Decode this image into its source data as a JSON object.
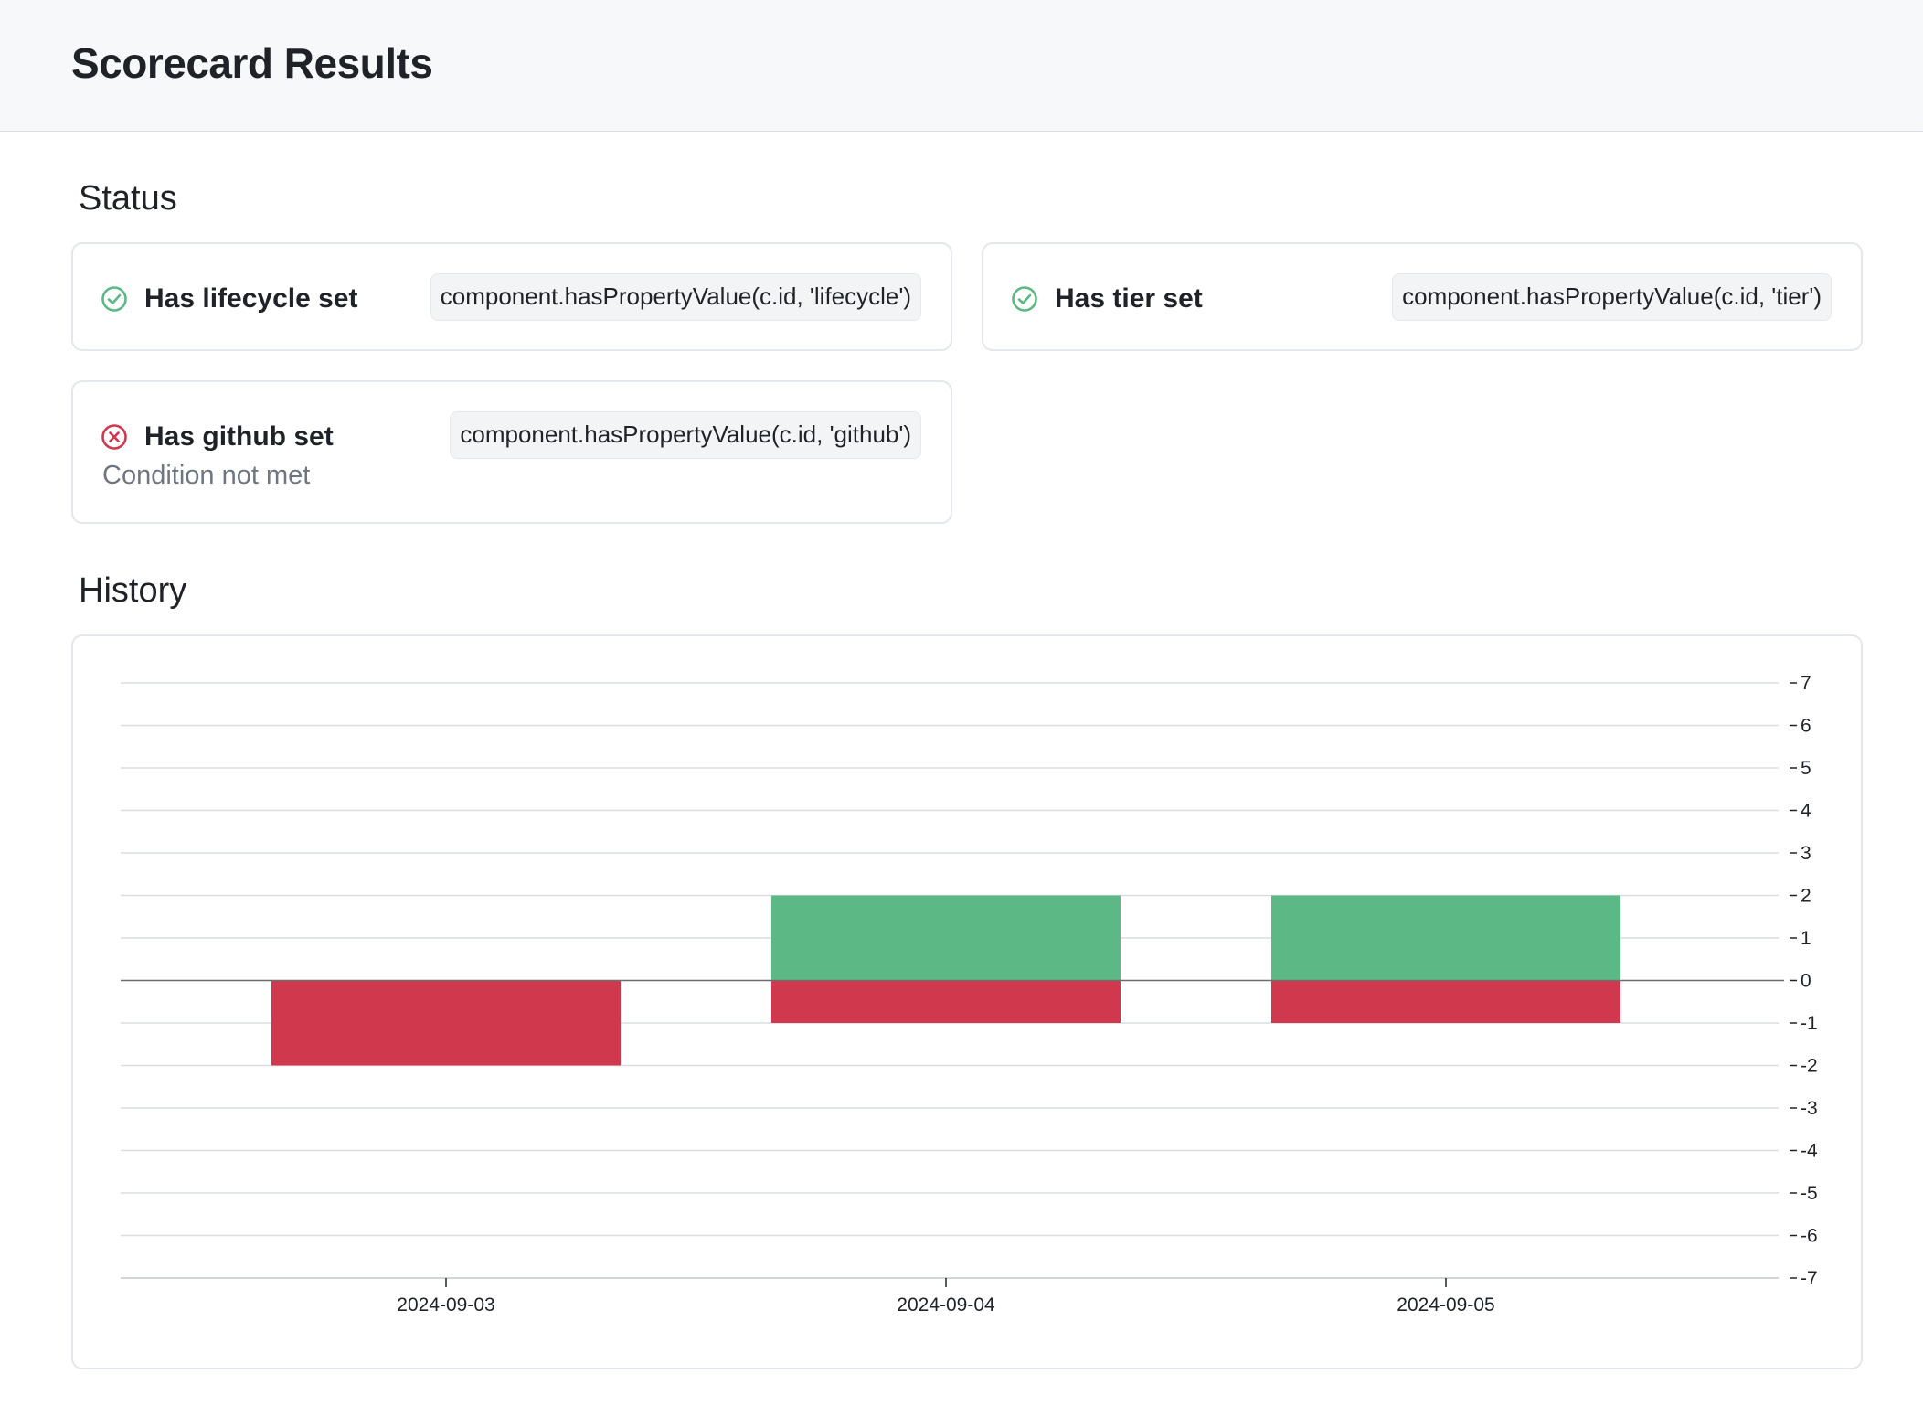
{
  "header": {
    "title": "Scorecard Results"
  },
  "status": {
    "title": "Status",
    "checks": [
      {
        "name": "Has lifecycle set",
        "expression": "component.hasPropertyValue(c.id, 'lifecycle')",
        "state": "pass",
        "icon": "check-circle-icon"
      },
      {
        "name": "Has tier set",
        "expression": "component.hasPropertyValue(c.id, 'tier')",
        "state": "pass",
        "icon": "check-circle-icon"
      },
      {
        "name": "Has github set",
        "expression": "component.hasPropertyValue(c.id, 'github')",
        "state": "fail",
        "icon": "x-circle-icon",
        "note": "Condition not met"
      }
    ]
  },
  "history": {
    "title": "History"
  },
  "colors": {
    "pass": "#5cb884",
    "fail": "#d0384e",
    "grid": "#d9dde2",
    "zero": "#6e6e6e"
  },
  "chart_data": {
    "type": "bar",
    "stacked": true,
    "categories": [
      "2024-09-03",
      "2024-09-04",
      "2024-09-05"
    ],
    "series": [
      {
        "values": [
          0,
          2,
          2
        ],
        "color": "#5cb884"
      },
      {
        "values": [
          -2,
          -1,
          -1
        ],
        "color": "#d0384e"
      }
    ],
    "ylim": [
      -7,
      7
    ],
    "yticks": [
      7,
      6,
      5,
      4,
      3,
      2,
      1,
      0,
      -1,
      -2,
      -3,
      -4,
      -5,
      -6,
      -7
    ],
    "y_axis_side": "right",
    "grid": true,
    "legend": "none"
  }
}
